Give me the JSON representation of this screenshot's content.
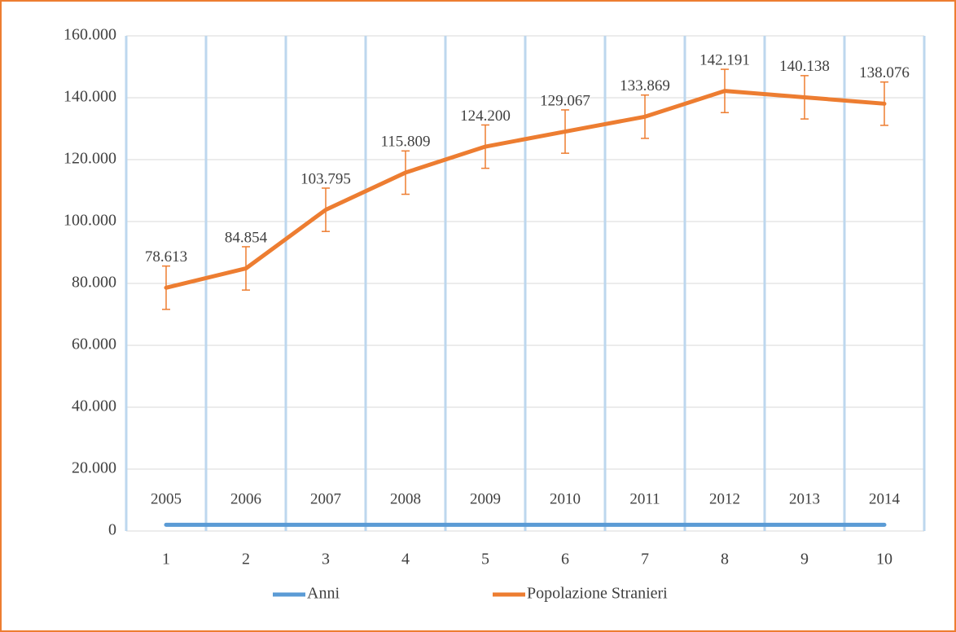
{
  "chart_data": {
    "type": "line",
    "categories": [
      "1",
      "2",
      "3",
      "4",
      "5",
      "6",
      "7",
      "8",
      "9",
      "10"
    ],
    "series": [
      {
        "name": "Anni",
        "color": "#5b9bd5",
        "values": [
          2005,
          2006,
          2007,
          2008,
          2009,
          2010,
          2011,
          2012,
          2013,
          2014
        ]
      },
      {
        "name": "Popolazione Stranieri",
        "color": "#ed7d31",
        "values": [
          78613,
          84854,
          103795,
          115809,
          124200,
          129067,
          133869,
          142191,
          140138,
          138076
        ],
        "value_labels": [
          "78.613",
          "84.854",
          "103.795",
          "115.809",
          "124.200",
          "129.067",
          "133.869",
          "142.191",
          "140.138",
          "138.076"
        ],
        "errors": [
          7000,
          7000,
          7000,
          7000,
          7000,
          7000,
          7000,
          7000,
          7000,
          7000
        ]
      }
    ],
    "ylim": [
      0,
      160000
    ],
    "yticks": [
      0,
      {
        "value": 20000,
        "label": "20.000"
      },
      {
        "value": 40000,
        "label": "40.000"
      },
      {
        "value": 60000,
        "label": "60.000"
      },
      {
        "value": 80000,
        "label": "80.000"
      },
      {
        "value": 100000,
        "label": "100.000"
      },
      {
        "value": 120000,
        "label": "120.000"
      },
      {
        "value": 140000,
        "label": "140.000"
      },
      {
        "value": 160000,
        "label": "160.000"
      }
    ],
    "grid": true,
    "legend": "bottom"
  }
}
